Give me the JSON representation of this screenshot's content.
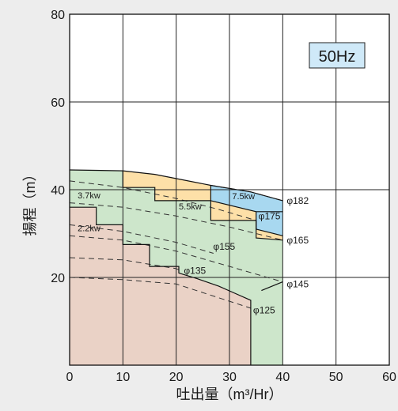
{
  "chart_data": {
    "type": "area",
    "frequency_label": "50Hz",
    "xlabel": "吐出量（m³/Hr）",
    "ylabel": "揚程（m）",
    "xlim": [
      0,
      60
    ],
    "ylim": [
      0,
      80
    ],
    "x_ticks": [
      "0",
      "10",
      "20",
      "30",
      "40",
      "50",
      "60"
    ],
    "y_ticks": [
      "20",
      "40",
      "60",
      "80"
    ],
    "grid": true,
    "regions": [
      {
        "label": "2.2kw",
        "color": "#ead2c6",
        "polygon": [
          [
            0,
            36
          ],
          [
            5,
            36
          ],
          [
            5,
            32
          ],
          [
            10,
            32
          ],
          [
            10,
            27.5
          ],
          [
            15,
            27.5
          ],
          [
            15,
            22.5
          ],
          [
            20.5,
            22.5
          ],
          [
            20.5,
            21
          ],
          [
            24,
            19.7
          ],
          [
            28,
            18
          ],
          [
            31,
            16.4
          ],
          [
            34,
            14.8
          ],
          [
            34,
            0
          ],
          [
            0,
            0
          ]
        ]
      },
      {
        "label": "3.7kw",
        "color": "#cde6cb",
        "polygon": [
          [
            0,
            44.5
          ],
          [
            10,
            44.3
          ],
          [
            16,
            43.3
          ],
          [
            26.5,
            40.5
          ],
          [
            26.5,
            37.5
          ],
          [
            35,
            32.5
          ],
          [
            40,
            29
          ],
          [
            40,
            19.5
          ],
          [
            36,
            17
          ],
          [
            34,
            15.5
          ],
          [
            34,
            0
          ],
          [
            40,
            0
          ],
          [
            40,
            19.5
          ],
          [
            40,
            19.3
          ],
          [
            40,
            19
          ],
          [
            40,
            0
          ],
          [
            40,
            0
          ],
          [
            34,
            0
          ],
          [
            34,
            14.8
          ],
          [
            31,
            16.4
          ],
          [
            28,
            18
          ],
          [
            24,
            19.7
          ],
          [
            20.5,
            21
          ],
          [
            20.5,
            22.5
          ],
          [
            15,
            22.5
          ],
          [
            15,
            27.5
          ],
          [
            10,
            27.5
          ],
          [
            10,
            32
          ],
          [
            5,
            32
          ],
          [
            5,
            36
          ],
          [
            0,
            36
          ]
        ]
      },
      {
        "label": "5.5kw",
        "color": "#fde0a8",
        "polygon": [
          [
            10,
            44.3
          ],
          [
            16,
            43.5
          ],
          [
            26.5,
            41
          ],
          [
            26.5,
            40.5
          ],
          [
            34,
            38
          ],
          [
            40,
            35
          ],
          [
            40,
            29
          ],
          [
            35,
            32.5
          ],
          [
            26.5,
            37.5
          ],
          [
            26.5,
            40.5
          ],
          [
            16,
            43.3
          ],
          [
            10,
            44.3
          ]
        ]
      },
      {
        "label": "7.5kw",
        "color": "#a8d8f0",
        "polygon": [
          [
            26.5,
            41
          ],
          [
            34,
            39.5
          ],
          [
            40,
            37.5
          ],
          [
            40,
            29
          ],
          [
            35,
            32.5
          ],
          [
            35,
            35
          ],
          [
            26.5,
            37.5
          ]
        ]
      }
    ],
    "impeller_curves": [
      {
        "label": "φ182",
        "points": [
          [
            26.5,
            41
          ],
          [
            34,
            39.5
          ],
          [
            40,
            37.5
          ]
        ]
      },
      {
        "label": "φ175",
        "points": [
          [
            0,
            42
          ],
          [
            10,
            40.5
          ],
          [
            20,
            38
          ],
          [
            28,
            35.5
          ],
          [
            35,
            33
          ]
        ]
      },
      {
        "label": "φ165",
        "points": [
          [
            0,
            37
          ],
          [
            10,
            36
          ],
          [
            20,
            34
          ],
          [
            30,
            31.5
          ],
          [
            40,
            28.5
          ]
        ]
      },
      {
        "label": "φ155",
        "points": [
          [
            0,
            32
          ],
          [
            10,
            30.5
          ],
          [
            20,
            28
          ],
          [
            27,
            25.5
          ]
        ]
      },
      {
        "label": "φ145",
        "points": [
          [
            0,
            29.5
          ],
          [
            10,
            28.5
          ],
          [
            20,
            26
          ],
          [
            30,
            22.5
          ],
          [
            40,
            19
          ]
        ]
      },
      {
        "label": "φ135",
        "points": [
          [
            0,
            24.5
          ],
          [
            10,
            24
          ],
          [
            20,
            22
          ],
          [
            21,
            21.5
          ]
        ]
      },
      {
        "label": "φ125",
        "points": [
          [
            0,
            20
          ],
          [
            10,
            19.5
          ],
          [
            20,
            18.5
          ],
          [
            34,
            13
          ]
        ]
      }
    ]
  }
}
